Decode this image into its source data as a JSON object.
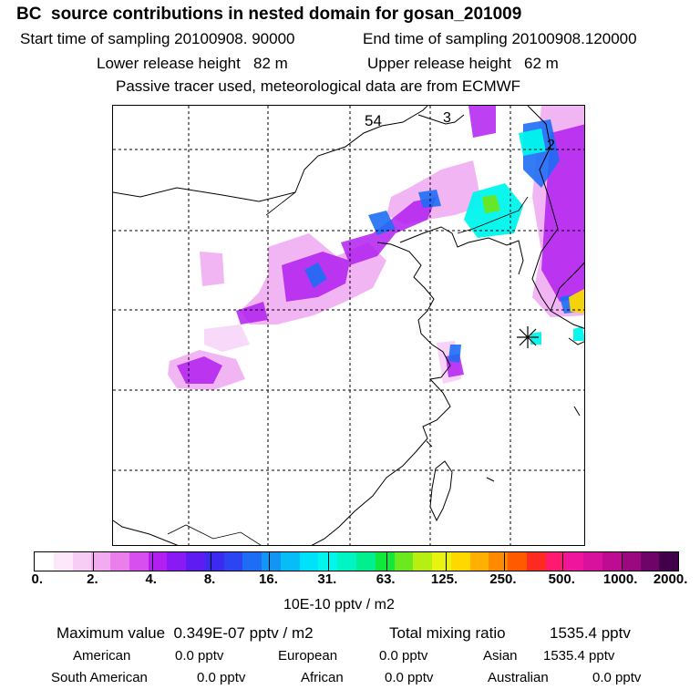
{
  "title": "BC  source contributions in nested domain for gosan_201009",
  "header": {
    "start_label": "Start time of sampling 20100908. 90000",
    "end_label": "End time of sampling 20100908.120000",
    "lower_label": "Lower release height   82 m",
    "upper_label": "Upper release height   62 m",
    "tracer_label": "Passive tracer used, meteorological data are from ECMWF"
  },
  "map": {
    "labels": [
      "54",
      "3",
      "2"
    ],
    "receptor_marker": "star-icon",
    "colors": {
      "coast": "#000000",
      "grid": "#000000",
      "marker": "#000000"
    }
  },
  "colorbar": {
    "ticks": [
      "0.",
      "2.",
      "4.",
      "8.",
      "16.",
      "31.",
      "63.",
      "125.",
      "250.",
      "500.",
      "1000.",
      "2000."
    ],
    "unit": "10E-10 pptv / m2",
    "colors": [
      "#ffffff",
      "#fde8fb",
      "#f8cdf5",
      "#f2aaf0",
      "#ea7fec",
      "#d84ff0",
      "#b21ff0",
      "#8a1af5",
      "#5e1cf2",
      "#3b2af0",
      "#2c44f2",
      "#1d6ef5",
      "#1196f5",
      "#08bdf7",
      "#00e2fa",
      "#00f5ec",
      "#00f5c4",
      "#00f090",
      "#10e83c",
      "#6be81e",
      "#b8ef12",
      "#e8f410",
      "#ffd800",
      "#ffb000",
      "#ff8a00",
      "#ff5a00",
      "#ff2a20",
      "#ff1a70",
      "#f0169c",
      "#d8129c",
      "#be0c92",
      "#9c0880",
      "#6e0468",
      "#42004a"
    ]
  },
  "summary": {
    "max_label": "Maximum value  0.349E-07 pptv / m2",
    "total_label": "Total mixing ratio",
    "total_value": "1535.4 pptv",
    "regions": [
      {
        "name": "American",
        "value": "0.0 pptv"
      },
      {
        "name": "European",
        "value": "0.0 pptv"
      },
      {
        "name": "Asian",
        "value": "1535.4 pptv"
      },
      {
        "name": "South American",
        "value": "0.0 pptv"
      },
      {
        "name": "African",
        "value": "0.0 pptv"
      },
      {
        "name": "Australian",
        "value": "0.0 pptv"
      }
    ]
  }
}
